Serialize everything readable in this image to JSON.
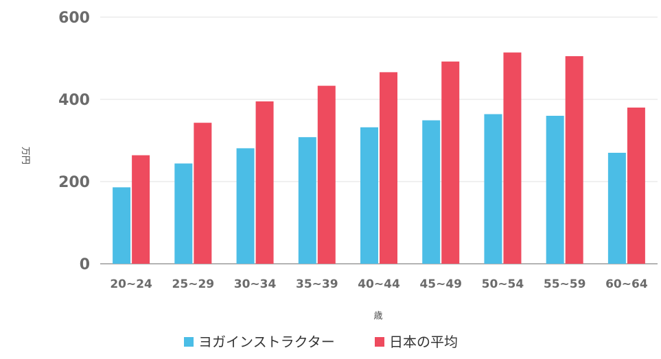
{
  "chart_data": {
    "type": "bar",
    "title": "",
    "xlabel": "歳",
    "ylabel": "万円",
    "ylim": [
      0,
      600
    ],
    "yticks": [
      0,
      200,
      400,
      600
    ],
    "grid": true,
    "legend": "bottom",
    "categories": [
      "20~24",
      "25~29",
      "30~34",
      "35~39",
      "40~44",
      "45~49",
      "50~54",
      "55~59",
      "60~64"
    ],
    "series": [
      {
        "name": "ヨガインストラクター",
        "color": "#4bbde6",
        "values": [
          186,
          244,
          281,
          308,
          332,
          349,
          364,
          360,
          270
        ]
      },
      {
        "name": "日本の平均",
        "color": "#ee4b5e",
        "values": [
          264,
          343,
          395,
          433,
          466,
          492,
          514,
          505,
          380
        ]
      }
    ]
  }
}
